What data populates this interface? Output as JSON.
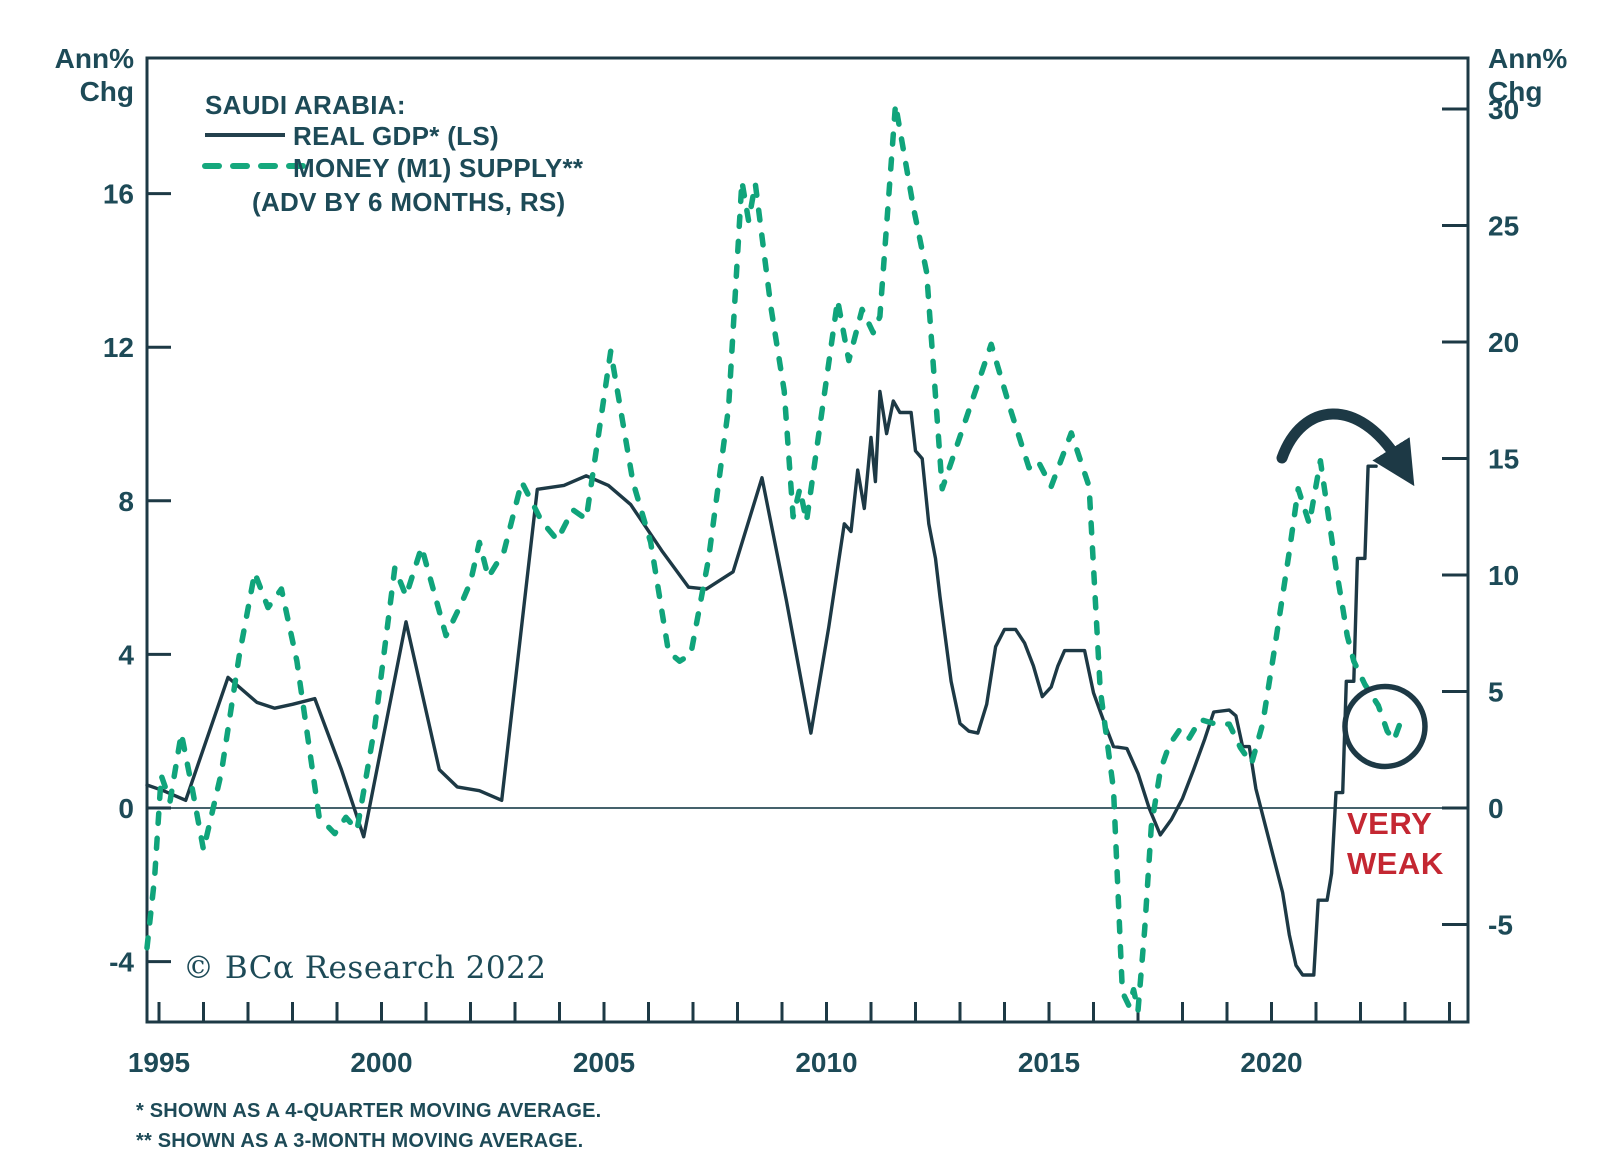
{
  "axis_units": {
    "left": [
      "Ann%",
      "Chg"
    ],
    "right": [
      "Ann%",
      "Chg"
    ]
  },
  "legend": {
    "title": "SAUDI ARABIA:",
    "gdp_label": "REAL GDP* (LS)",
    "m1_label": "MONEY (M1) SUPPLY**",
    "m1_sublabel": "(ADV BY 6 MONTHS, RS)"
  },
  "annotations": {
    "very_weak_line1": "VERY",
    "very_weak_line2": "WEAK",
    "copyright": "© BCα Research 2022"
  },
  "footnotes": [
    "*  SHOWN AS A 4-QUARTER MOVING AVERAGE.",
    "** SHOWN AS A 3-MONTH MOVING AVERAGE."
  ],
  "colors": {
    "line_dark": "#1d3945",
    "line_green": "#10a47b",
    "text": "#1d4a57",
    "red": "#c42732",
    "zero_line": "#45626c"
  },
  "chart_data": {
    "type": "line",
    "title": "SAUDI ARABIA: REAL GDP (LS) vs MONEY (M1) SUPPLY (ADV BY 6 MONTHS, RS)",
    "x_range": [
      1994.7,
      2024.4
    ],
    "x_tick_years": [
      1995,
      1996,
      1997,
      1998,
      1999,
      2000,
      2001,
      2002,
      2003,
      2004,
      2005,
      2006,
      2007,
      2008,
      2009,
      2010,
      2011,
      2012,
      2013,
      2014,
      2015,
      2016,
      2017,
      2018,
      2019,
      2020,
      2021,
      2022,
      2023,
      2024
    ],
    "x_labels": [
      1995,
      2000,
      2005,
      2010,
      2015,
      2020
    ],
    "left_axis": {
      "label": "Ann% Chg",
      "ticks": [
        16,
        12,
        8,
        4,
        0,
        -4
      ],
      "range": [
        -5.6,
        19.5
      ]
    },
    "right_axis": {
      "label": "Ann% Chg",
      "ticks": [
        30,
        25,
        20,
        15,
        10,
        5,
        0,
        -5
      ],
      "range": [
        -9.2,
        32.2
      ]
    },
    "zero_line": true,
    "legend_position": "top-left",
    "series": [
      {
        "name": "REAL GDP (LS)",
        "axis": "left",
        "style": "solid",
        "color": "#1d3945",
        "points": [
          [
            1994.73,
            0.6
          ],
          [
            1995.1,
            0.45
          ],
          [
            1995.6,
            0.2
          ],
          [
            1996.55,
            3.4
          ],
          [
            1997.2,
            2.75
          ],
          [
            1997.6,
            2.6
          ],
          [
            1998.0,
            2.7
          ],
          [
            1998.5,
            2.85
          ],
          [
            1999.1,
            1.0
          ],
          [
            1999.6,
            -0.75
          ],
          [
            2000.55,
            4.85
          ],
          [
            2001.3,
            1.0
          ],
          [
            2001.7,
            0.55
          ],
          [
            2002.2,
            0.45
          ],
          [
            2002.7,
            0.2
          ],
          [
            2003.5,
            8.3
          ],
          [
            2004.1,
            8.4
          ],
          [
            2004.6,
            8.65
          ],
          [
            2005.1,
            8.4
          ],
          [
            2005.6,
            7.9
          ],
          [
            2006.3,
            6.7
          ],
          [
            2006.9,
            5.75
          ],
          [
            2007.3,
            5.7
          ],
          [
            2007.9,
            6.15
          ],
          [
            2008.55,
            8.6
          ],
          [
            2009.1,
            5.4
          ],
          [
            2009.65,
            1.95
          ],
          [
            2010.05,
            4.7
          ],
          [
            2010.4,
            7.4
          ],
          [
            2010.55,
            7.2
          ],
          [
            2010.7,
            8.8
          ],
          [
            2010.85,
            7.8
          ],
          [
            2011.0,
            9.65
          ],
          [
            2011.1,
            8.5
          ],
          [
            2011.2,
            10.85
          ],
          [
            2011.35,
            9.75
          ],
          [
            2011.5,
            10.6
          ],
          [
            2011.65,
            10.3
          ],
          [
            2011.9,
            10.3
          ],
          [
            2012.0,
            9.3
          ],
          [
            2012.15,
            9.1
          ],
          [
            2012.3,
            7.4
          ],
          [
            2012.45,
            6.5
          ],
          [
            2012.55,
            5.5
          ],
          [
            2012.8,
            3.3
          ],
          [
            2013.0,
            2.2
          ],
          [
            2013.2,
            2.0
          ],
          [
            2013.4,
            1.95
          ],
          [
            2013.6,
            2.7
          ],
          [
            2013.8,
            4.2
          ],
          [
            2014.0,
            4.65
          ],
          [
            2014.25,
            4.65
          ],
          [
            2014.45,
            4.3
          ],
          [
            2014.65,
            3.7
          ],
          [
            2014.85,
            2.9
          ],
          [
            2015.05,
            3.15
          ],
          [
            2015.2,
            3.7
          ],
          [
            2015.35,
            4.1
          ],
          [
            2015.8,
            4.1
          ],
          [
            2016.0,
            3.0
          ],
          [
            2016.25,
            2.2
          ],
          [
            2016.45,
            1.6
          ],
          [
            2016.75,
            1.55
          ],
          [
            2017.0,
            0.9
          ],
          [
            2017.25,
            0.0
          ],
          [
            2017.5,
            -0.7
          ],
          [
            2017.75,
            -0.3
          ],
          [
            2018.0,
            0.25
          ],
          [
            2018.25,
            1.0
          ],
          [
            2018.5,
            1.8
          ],
          [
            2018.7,
            2.5
          ],
          [
            2019.05,
            2.55
          ],
          [
            2019.2,
            2.4
          ],
          [
            2019.35,
            1.6
          ],
          [
            2019.5,
            1.6
          ],
          [
            2019.65,
            0.5
          ],
          [
            2019.85,
            -0.4
          ],
          [
            2020.05,
            -1.3
          ],
          [
            2020.25,
            -2.2
          ],
          [
            2020.4,
            -3.3
          ],
          [
            2020.55,
            -4.1
          ],
          [
            2020.7,
            -4.35
          ],
          [
            2020.95,
            -4.35
          ],
          [
            2021.05,
            -2.4
          ],
          [
            2021.25,
            -2.4
          ],
          [
            2021.35,
            -1.7
          ],
          [
            2021.45,
            0.4
          ],
          [
            2021.6,
            0.4
          ],
          [
            2021.68,
            3.3
          ],
          [
            2021.85,
            3.3
          ],
          [
            2021.93,
            6.5
          ],
          [
            2022.1,
            6.5
          ],
          [
            2022.17,
            8.9
          ],
          [
            2022.35,
            8.9
          ]
        ]
      },
      {
        "name": "MONEY (M1) SUPPLY (ADV BY 6 MONTHS, RS)",
        "axis": "right",
        "style": "dashed",
        "color": "#10a47b",
        "points": [
          [
            1994.73,
            -6.0
          ],
          [
            1994.9,
            -3.0
          ],
          [
            1995.05,
            1.4
          ],
          [
            1995.25,
            0.3
          ],
          [
            1995.5,
            3.2
          ],
          [
            1995.75,
            0.8
          ],
          [
            1996.0,
            -1.8
          ],
          [
            1996.4,
            1.5
          ],
          [
            1996.8,
            6.5
          ],
          [
            1997.15,
            10.1
          ],
          [
            1997.45,
            8.6
          ],
          [
            1997.75,
            9.4
          ],
          [
            1998.1,
            6.3
          ],
          [
            1998.6,
            -0.4
          ],
          [
            1998.95,
            -1.1
          ],
          [
            1999.2,
            -0.4
          ],
          [
            1999.45,
            -0.95
          ],
          [
            1999.85,
            3.5
          ],
          [
            2000.3,
            10.3
          ],
          [
            2000.55,
            9.1
          ],
          [
            2000.9,
            11.2
          ],
          [
            2001.45,
            7.4
          ],
          [
            2001.8,
            8.8
          ],
          [
            2002.0,
            9.7
          ],
          [
            2002.2,
            11.4
          ],
          [
            2002.4,
            9.9
          ],
          [
            2002.75,
            11.0
          ],
          [
            2003.15,
            14.0
          ],
          [
            2003.6,
            12.3
          ],
          [
            2003.95,
            11.5
          ],
          [
            2004.3,
            12.8
          ],
          [
            2004.6,
            12.4
          ],
          [
            2005.15,
            19.6
          ],
          [
            2005.65,
            14.0
          ],
          [
            2006.05,
            11.4
          ],
          [
            2006.45,
            6.7
          ],
          [
            2006.7,
            6.3
          ],
          [
            2006.95,
            6.6
          ],
          [
            2007.35,
            10.7
          ],
          [
            2007.8,
            17.2
          ],
          [
            2008.1,
            26.9
          ],
          [
            2008.25,
            25.2
          ],
          [
            2008.4,
            26.8
          ],
          [
            2008.75,
            21.5
          ],
          [
            2009.05,
            17.9
          ],
          [
            2009.25,
            12.5
          ],
          [
            2009.4,
            13.7
          ],
          [
            2009.55,
            12.3
          ],
          [
            2010.25,
            21.8
          ],
          [
            2010.5,
            19.2
          ],
          [
            2010.8,
            21.4
          ],
          [
            2011.05,
            20.4
          ],
          [
            2011.2,
            21.1
          ],
          [
            2011.55,
            30.2
          ],
          [
            2011.95,
            25.8
          ],
          [
            2012.25,
            23.0
          ],
          [
            2012.6,
            13.7
          ],
          [
            2013.1,
            16.5
          ],
          [
            2013.7,
            19.9
          ],
          [
            2014.15,
            17.0
          ],
          [
            2014.55,
            14.6
          ],
          [
            2014.75,
            14.9
          ],
          [
            2015.05,
            13.8
          ],
          [
            2015.5,
            16.1
          ],
          [
            2015.9,
            13.8
          ],
          [
            2016.15,
            5.1
          ],
          [
            2016.45,
            0.8
          ],
          [
            2016.65,
            -7.9
          ],
          [
            2016.8,
            -8.5
          ],
          [
            2016.9,
            -7.8
          ],
          [
            2017.0,
            -8.7
          ],
          [
            2017.15,
            -5.2
          ],
          [
            2017.3,
            -0.8
          ],
          [
            2017.5,
            1.6
          ],
          [
            2017.7,
            2.7
          ],
          [
            2017.95,
            3.4
          ],
          [
            2018.15,
            3.0
          ],
          [
            2018.4,
            3.8
          ],
          [
            2018.75,
            3.6
          ],
          [
            2019.05,
            3.6
          ],
          [
            2019.3,
            2.6
          ],
          [
            2019.55,
            1.9
          ],
          [
            2019.8,
            3.6
          ],
          [
            2020.05,
            6.6
          ],
          [
            2020.4,
            11.0
          ],
          [
            2020.6,
            13.7
          ],
          [
            2020.85,
            12.2
          ],
          [
            2021.1,
            14.9
          ],
          [
            2021.45,
            10.3
          ],
          [
            2021.6,
            8.6
          ],
          [
            2021.7,
            7.4
          ],
          [
            2021.85,
            6.3
          ],
          [
            2022.1,
            5.3
          ],
          [
            2022.4,
            4.4
          ],
          [
            2022.6,
            3.3
          ],
          [
            2022.75,
            2.9
          ],
          [
            2022.9,
            3.7
          ]
        ]
      }
    ],
    "annotation_marks": {
      "circle": {
        "x_year": 2022.55,
        "y_right_value": 3.5,
        "radius_px": 40
      },
      "arrow": {
        "meaning": "turning down",
        "near_year": 2021.5
      }
    }
  }
}
